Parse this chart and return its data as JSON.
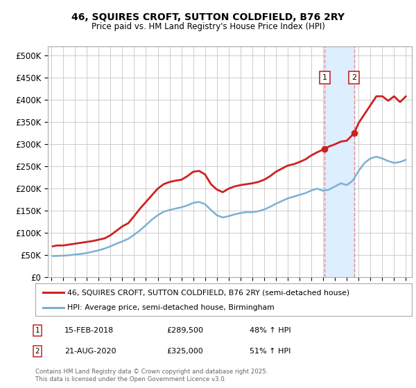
{
  "title1": "46, SQUIRES CROFT, SUTTON COLDFIELD, B76 2RY",
  "title2": "Price paid vs. HM Land Registry's House Price Index (HPI)",
  "background_color": "#ffffff",
  "plot_bg_color": "#ffffff",
  "grid_color": "#cccccc",
  "red_color": "#cc2222",
  "blue_color": "#7ab0d4",
  "shade_color": "#ddeeff",
  "dashed_color": "#dd8888",
  "marker1_x": 2018.12,
  "marker2_x": 2020.62,
  "marker1_y": 289500,
  "marker2_y": 325000,
  "legend1": "46, SQUIRES CROFT, SUTTON COLDFIELD, B76 2RY (semi-detached house)",
  "legend2": "HPI: Average price, semi-detached house, Birmingham",
  "ann1_date": "15-FEB-2018",
  "ann1_price": "£289,500",
  "ann1_hpi": "48% ↑ HPI",
  "ann2_date": "21-AUG-2020",
  "ann2_price": "£325,000",
  "ann2_hpi": "51% ↑ HPI",
  "footer": "Contains HM Land Registry data © Crown copyright and database right 2025.\nThis data is licensed under the Open Government Licence v3.0.",
  "ylim_min": 0,
  "ylim_max": 520000,
  "xmin": 1994.7,
  "xmax": 2025.5,
  "yticks": [
    0,
    50000,
    100000,
    150000,
    200000,
    250000,
    300000,
    350000,
    400000,
    450000,
    500000
  ],
  "red_x": [
    1995.1,
    1995.5,
    1996.0,
    1996.5,
    1997.0,
    1997.5,
    1998.0,
    1998.5,
    1999.0,
    1999.5,
    2000.0,
    2000.5,
    2001.0,
    2001.5,
    2002.0,
    2002.5,
    2003.0,
    2003.5,
    2004.0,
    2004.5,
    2005.0,
    2005.5,
    2006.0,
    2006.5,
    2007.0,
    2007.5,
    2008.0,
    2008.5,
    2009.0,
    2009.5,
    2010.0,
    2010.5,
    2011.0,
    2011.5,
    2012.0,
    2012.5,
    2013.0,
    2013.5,
    2014.0,
    2014.5,
    2015.0,
    2015.5,
    2016.0,
    2016.5,
    2017.0,
    2017.5,
    2018.12,
    2018.5,
    2019.0,
    2019.5,
    2020.0,
    2020.62,
    2021.0,
    2021.5,
    2022.0,
    2022.5,
    2023.0,
    2023.5,
    2024.0,
    2024.5,
    2025.0
  ],
  "red_y": [
    70000,
    72000,
    72000,
    74000,
    76000,
    78000,
    80000,
    82000,
    85000,
    88000,
    95000,
    105000,
    115000,
    122000,
    138000,
    155000,
    170000,
    185000,
    200000,
    210000,
    215000,
    218000,
    220000,
    228000,
    238000,
    240000,
    232000,
    210000,
    198000,
    192000,
    200000,
    205000,
    208000,
    210000,
    212000,
    215000,
    220000,
    228000,
    238000,
    245000,
    252000,
    255000,
    260000,
    266000,
    275000,
    282000,
    289500,
    295000,
    300000,
    306000,
    308000,
    325000,
    348000,
    368000,
    388000,
    408000,
    408000,
    398000,
    408000,
    395000,
    408000
  ],
  "blue_x": [
    1995.1,
    1995.5,
    1996.0,
    1996.5,
    1997.0,
    1997.5,
    1998.0,
    1998.5,
    1999.0,
    1999.5,
    2000.0,
    2000.5,
    2001.0,
    2001.5,
    2002.0,
    2002.5,
    2003.0,
    2003.5,
    2004.0,
    2004.5,
    2005.0,
    2005.5,
    2006.0,
    2006.5,
    2007.0,
    2007.5,
    2008.0,
    2008.5,
    2009.0,
    2009.5,
    2010.0,
    2010.5,
    2011.0,
    2011.5,
    2012.0,
    2012.5,
    2013.0,
    2013.5,
    2014.0,
    2014.5,
    2015.0,
    2015.5,
    2016.0,
    2016.5,
    2017.0,
    2017.5,
    2018.0,
    2018.5,
    2019.0,
    2019.5,
    2020.0,
    2020.5,
    2021.0,
    2021.5,
    2022.0,
    2022.5,
    2023.0,
    2023.5,
    2024.0,
    2024.5,
    2025.0
  ],
  "blue_y": [
    48000,
    48500,
    49000,
    50000,
    51500,
    53000,
    55000,
    58000,
    61000,
    65000,
    70000,
    76000,
    81000,
    87000,
    96000,
    106000,
    118000,
    130000,
    140000,
    148000,
    152000,
    155000,
    158000,
    162000,
    168000,
    170000,
    165000,
    152000,
    140000,
    135000,
    138000,
    142000,
    145000,
    147000,
    147000,
    149000,
    153000,
    159000,
    166000,
    172000,
    178000,
    182000,
    186000,
    190000,
    196000,
    200000,
    195000,
    198000,
    205000,
    212000,
    208000,
    218000,
    240000,
    258000,
    268000,
    272000,
    268000,
    262000,
    258000,
    260000,
    265000
  ]
}
